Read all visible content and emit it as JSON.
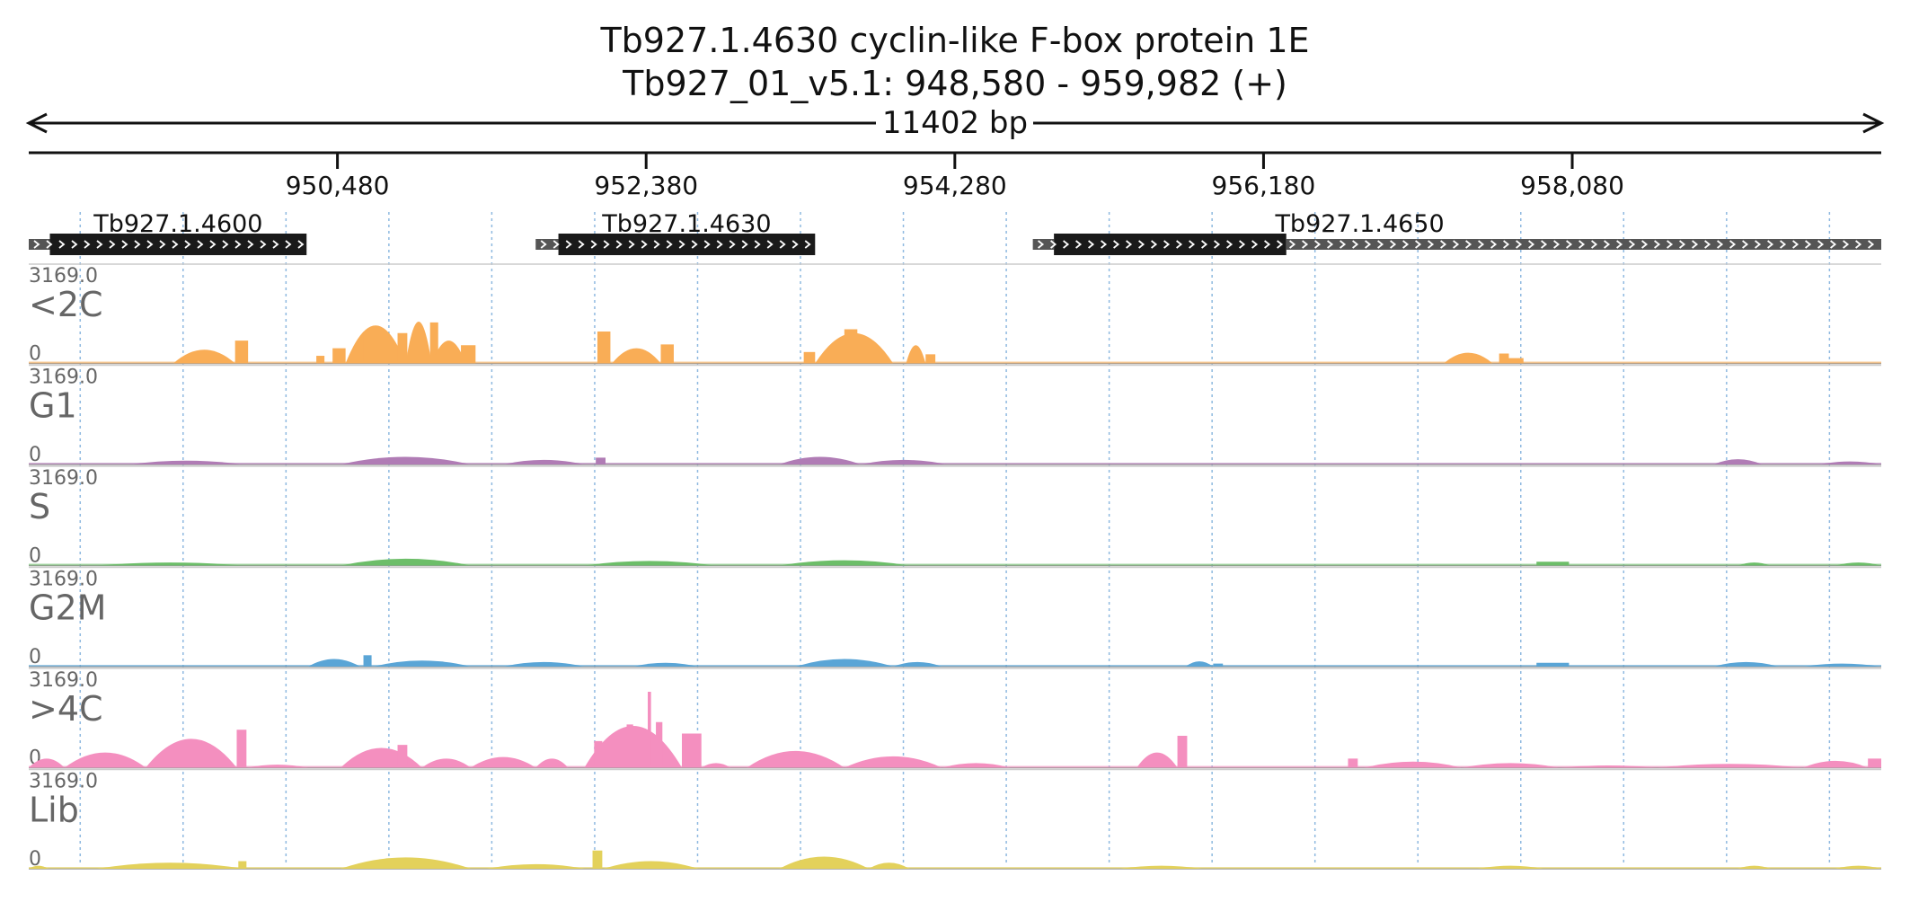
{
  "header": {
    "gene_title": "Tb927.1.4630  cyclin-like F-box protein 1E",
    "location": "Tb927_01_v5.1: 948,580 - 959,982 (+)",
    "span_label": "11402 bp"
  },
  "chart_data": {
    "type": "area",
    "region": {
      "start": 948580,
      "end": 959982
    },
    "ticks": [
      {
        "pos": 950480,
        "label": "950,480"
      },
      {
        "pos": 952380,
        "label": "952,380"
      },
      {
        "pos": 954280,
        "label": "954,280"
      },
      {
        "pos": 956180,
        "label": "956,180"
      },
      {
        "pos": 958080,
        "label": "958,080"
      }
    ],
    "genes": [
      {
        "name": "Tb927.1.4600",
        "utr5_start": 948580,
        "cds_start": 948710,
        "cds_end": 950290,
        "utr3_end": 950290
      },
      {
        "name": "Tb927.1.4630",
        "utr5_start": 951700,
        "cds_start": 951840,
        "cds_end": 953420,
        "utr3_end": 953420
      },
      {
        "name": "Tb927.1.4650",
        "utr5_start": 954760,
        "cds_start": 954890,
        "cds_end": 956320,
        "utr3_end": 959982
      }
    ],
    "y_max_label": "3169.0",
    "y_min_label": "0",
    "y_max": 3169,
    "tracks": [
      {
        "name": "<2C",
        "color": "#f9ad56",
        "peaks": [
          [
            949470,
            949850,
            0.18,
            0
          ],
          [
            949850,
            949930,
            0.3,
            1
          ],
          [
            950350,
            950400,
            0.1,
            1
          ],
          [
            950450,
            950530,
            0.2,
            1
          ],
          [
            950530,
            950900,
            0.5,
            0
          ],
          [
            950640,
            950690,
            0.42,
            1
          ],
          [
            950850,
            950910,
            0.4,
            1
          ],
          [
            950900,
            951060,
            0.55,
            0
          ],
          [
            951050,
            951100,
            0.54,
            1
          ],
          [
            951060,
            951270,
            0.3,
            0
          ],
          [
            951240,
            951330,
            0.24,
            1
          ],
          [
            952080,
            952160,
            0.42,
            1
          ],
          [
            952170,
            952470,
            0.2,
            0
          ],
          [
            952470,
            952550,
            0.25,
            1
          ],
          [
            953350,
            953420,
            0.15,
            1
          ],
          [
            953420,
            953900,
            0.4,
            0
          ],
          [
            953600,
            953680,
            0.45,
            1
          ],
          [
            953980,
            954100,
            0.24,
            0
          ],
          [
            954100,
            954160,
            0.12,
            1
          ],
          [
            957290,
            957590,
            0.14,
            0
          ],
          [
            957630,
            957690,
            0.13,
            1
          ],
          [
            957690,
            957780,
            0.07,
            1
          ]
        ]
      },
      {
        "name": "G1",
        "color": "#b07cb5",
        "peaks": [
          [
            949200,
            949900,
            0.05,
            0
          ],
          [
            950500,
            951300,
            0.1,
            0
          ],
          [
            951500,
            952000,
            0.06,
            0
          ],
          [
            952070,
            952130,
            0.09,
            1
          ],
          [
            953200,
            953700,
            0.1,
            0
          ],
          [
            953700,
            954230,
            0.06,
            0
          ],
          [
            958950,
            959250,
            0.07,
            0
          ],
          [
            959600,
            959982,
            0.04,
            0
          ]
        ]
      },
      {
        "name": "S",
        "color": "#6dbe69",
        "peaks": [
          [
            949000,
            949900,
            0.04,
            0
          ],
          [
            950500,
            951300,
            0.09,
            0
          ],
          [
            952000,
            952800,
            0.06,
            0
          ],
          [
            953200,
            954000,
            0.07,
            0
          ],
          [
            957860,
            958060,
            0.05,
            1
          ],
          [
            959100,
            959300,
            0.04,
            0
          ],
          [
            959700,
            959982,
            0.04,
            0
          ]
        ]
      },
      {
        "name": "G2M",
        "color": "#5aa5d6",
        "peaks": [
          [
            950300,
            950620,
            0.1,
            0
          ],
          [
            950640,
            950690,
            0.15,
            1
          ],
          [
            950700,
            951300,
            0.08,
            0
          ],
          [
            951500,
            952000,
            0.06,
            0
          ],
          [
            952300,
            952700,
            0.05,
            0
          ],
          [
            953300,
            953900,
            0.1,
            0
          ],
          [
            953900,
            954200,
            0.06,
            0
          ],
          [
            955700,
            955870,
            0.07,
            0
          ],
          [
            955870,
            955930,
            0.04,
            1
          ],
          [
            957860,
            958060,
            0.05,
            1
          ],
          [
            958950,
            959350,
            0.06,
            0
          ],
          [
            959500,
            959982,
            0.04,
            0
          ]
        ]
      },
      {
        "name": ">4C",
        "color": "#f48fbf",
        "peaks": [
          [
            948580,
            948800,
            0.12,
            0
          ],
          [
            948800,
            949300,
            0.2,
            0
          ],
          [
            949300,
            949860,
            0.38,
            0
          ],
          [
            949860,
            949920,
            0.5,
            1
          ],
          [
            949920,
            950300,
            0.04,
            0
          ],
          [
            950500,
            951000,
            0.26,
            0
          ],
          [
            950850,
            950910,
            0.3,
            1
          ],
          [
            951000,
            951300,
            0.12,
            0
          ],
          [
            951300,
            951700,
            0.14,
            0
          ],
          [
            951700,
            951900,
            0.12,
            0
          ],
          [
            952000,
            952600,
            0.55,
            0
          ],
          [
            952060,
            952110,
            0.35,
            1
          ],
          [
            952260,
            952300,
            0.57,
            1
          ],
          [
            952390,
            952410,
            1.0,
            1
          ],
          [
            952440,
            952480,
            0.6,
            1
          ],
          [
            952600,
            952720,
            0.45,
            1
          ],
          [
            952720,
            952900,
            0.06,
            0
          ],
          [
            953000,
            953600,
            0.22,
            0
          ],
          [
            953600,
            954200,
            0.15,
            0
          ],
          [
            954200,
            954620,
            0.06,
            0
          ],
          [
            955400,
            955650,
            0.2,
            0
          ],
          [
            955650,
            955710,
            0.42,
            1
          ],
          [
            956700,
            956760,
            0.12,
            1
          ],
          [
            956800,
            957400,
            0.08,
            0
          ],
          [
            957400,
            958000,
            0.06,
            0
          ],
          [
            958000,
            958600,
            0.03,
            0
          ],
          [
            958600,
            959500,
            0.05,
            0
          ],
          [
            959500,
            959900,
            0.09,
            0
          ],
          [
            959900,
            959982,
            0.12,
            1
          ]
        ]
      },
      {
        "name": "Lib",
        "color": "#e3d15b",
        "peaks": [
          [
            948580,
            948700,
            0.04,
            0
          ],
          [
            949000,
            949900,
            0.08,
            0
          ],
          [
            949870,
            949920,
            0.1,
            1
          ],
          [
            950500,
            951300,
            0.15,
            0
          ],
          [
            951400,
            952000,
            0.06,
            0
          ],
          [
            952050,
            952110,
            0.24,
            1
          ],
          [
            952120,
            952700,
            0.1,
            0
          ],
          [
            953200,
            953750,
            0.16,
            0
          ],
          [
            953750,
            954000,
            0.08,
            0
          ],
          [
            955300,
            955800,
            0.04,
            0
          ],
          [
            957500,
            957900,
            0.04,
            0
          ],
          [
            959100,
            959300,
            0.04,
            0
          ],
          [
            959700,
            959982,
            0.04,
            0
          ]
        ]
      }
    ]
  }
}
